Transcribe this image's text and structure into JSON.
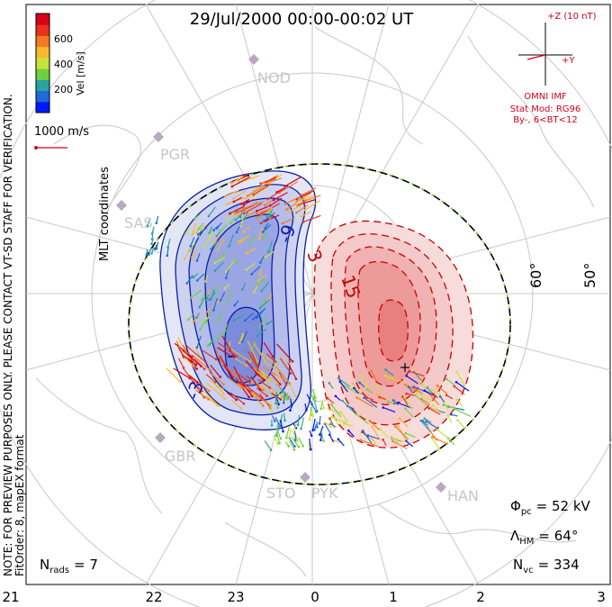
{
  "header": {
    "title": "29/Jul/2000 00:00-00:02 UT"
  },
  "colorbar": {
    "title": "Vel [m/s]",
    "ticks": [
      "600",
      "400",
      "200"
    ],
    "colors": [
      "#0019ff",
      "#1f6ad6",
      "#2aa3a0",
      "#6fd23c",
      "#c9e23a",
      "#f7b92e",
      "#f47a1f",
      "#e8321a",
      "#d6001a"
    ]
  },
  "coord_label": "MLT coordinates",
  "scale_vector": {
    "label": "1000 m/s"
  },
  "imf": {
    "z_label": "+Z (10 nT)",
    "y_label": "+Y",
    "source": "OMNI IMF",
    "model": "Stat Mod: RG96",
    "condition": "By-, 6<BT<12"
  },
  "side_note": {
    "line1": "NOTE: FOR PREVIEW PURPOSES ONLY. PLEASE CONTACT VT-SD STAFF FOR VERIFICATION.",
    "line2": "FitOrder: 8, mapEX format"
  },
  "stations": [
    "NOD",
    "PGR",
    "SAS",
    "GBR",
    "STO",
    "PYK",
    "HAN"
  ],
  "lat_labels": [
    "60°",
    "50°"
  ],
  "contour_labels": {
    "neg1": "-9",
    "neg2": "-3",
    "pos1": "3",
    "pos2": "15",
    "extra": "-"
  },
  "mlt_labels": [
    "21",
    "22",
    "23",
    "0",
    "1",
    "2",
    "3"
  ],
  "stats": {
    "phi_pc": "Φ",
    "phi_sub": "pc",
    "phi_value": "= 52 kV",
    "lambda": "Λ",
    "lambda_sub": "HM",
    "lambda_value": "= 64°",
    "nvc": "N",
    "nvc_sub": "vc",
    "nvc_value": "= 334",
    "nrads": "N",
    "nrads_sub": "rads",
    "nrads_value": "= 7"
  }
}
